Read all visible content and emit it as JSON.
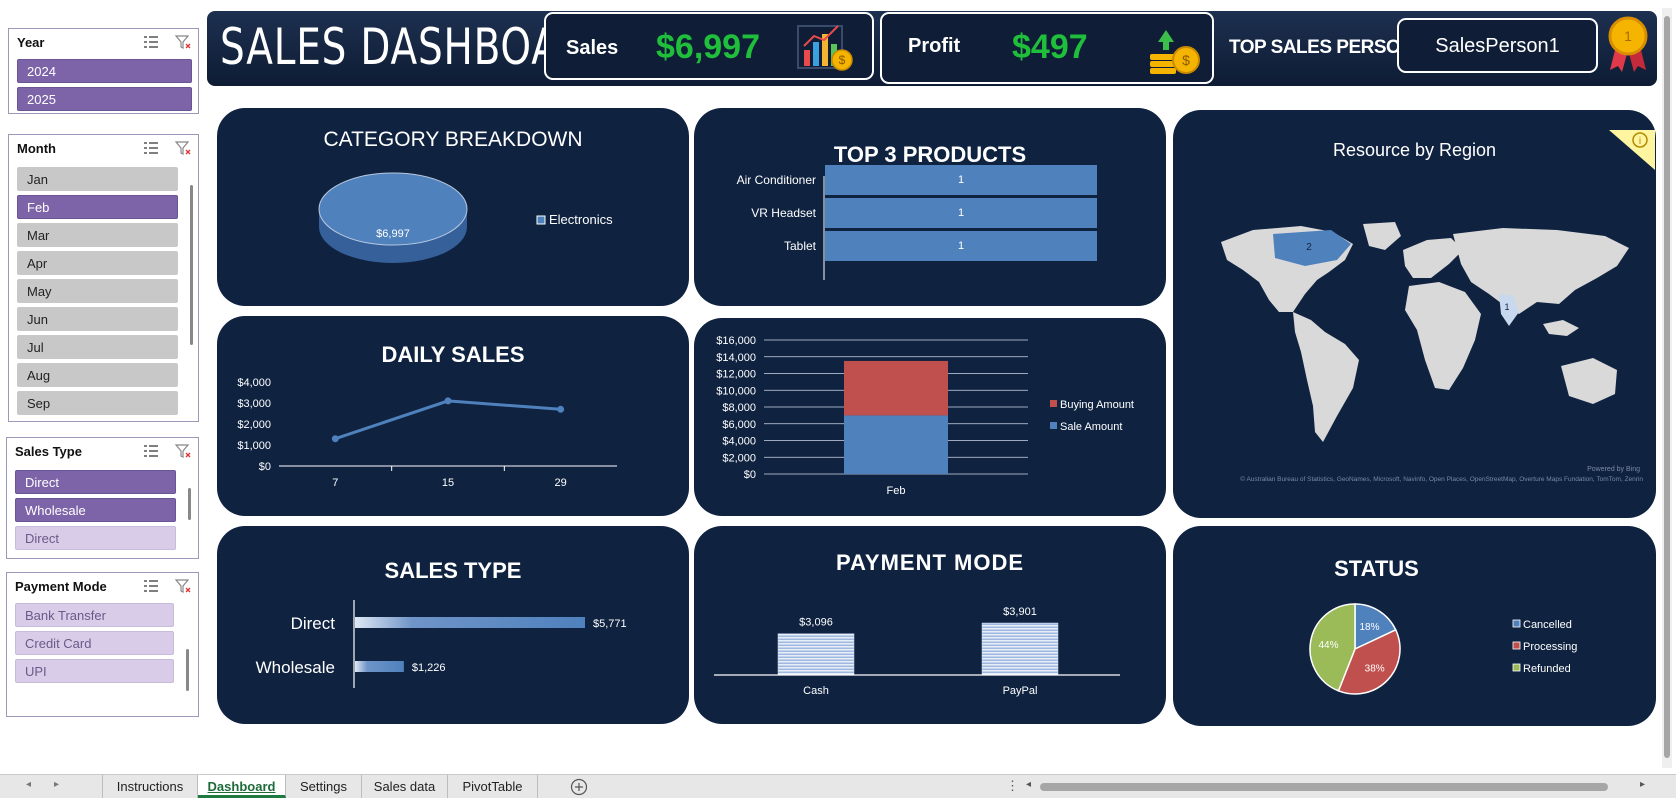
{
  "slicers": {
    "year": {
      "title": "Year",
      "items": [
        "2024",
        "2025"
      ]
    },
    "month": {
      "title": "Month",
      "items": [
        "Jan",
        "Feb",
        "Mar",
        "Apr",
        "May",
        "Jun",
        "Jul",
        "Aug",
        "Sep"
      ]
    },
    "sales_type": {
      "title": "Sales Type",
      "items": [
        "Direct",
        "Wholesale",
        "Direct"
      ]
    },
    "payment_mode": {
      "title": "Payment Mode",
      "items": [
        "Bank Transfer",
        "Credit Card",
        "UPI"
      ]
    }
  },
  "header": {
    "title": "SALES DASHBOARD",
    "sales_label": "Sales",
    "sales_value": "$6,997",
    "profit_label": "Profit",
    "profit_value": "$497",
    "top_label": "TOP SALES PERSON",
    "top_value": "SalesPerson1",
    "medal_number": "1"
  },
  "panels": {
    "category": {
      "title": "CATEGORY BREAKDOWN"
    },
    "top3": {
      "title": "TOP 3 PRODUCTS"
    },
    "region": {
      "title": "Resource by Region",
      "attribution": "© Australian Bureau of Statistics, GeoNames, Microsoft, Navinfo, Open Places, OpenStreetMap, Overture Maps Fundation, TomTom, Zenrin",
      "powered": "Powered by Bing"
    },
    "daily": {
      "title": "DAILY SALES"
    },
    "salestype": {
      "title": "SALES TYPE"
    },
    "payment": {
      "title": "PAYMENT MODE"
    },
    "status": {
      "title": "STATUS"
    }
  },
  "chart_data": [
    {
      "type": "pie",
      "name": "category",
      "categories": [
        "Electronics"
      ],
      "values": [
        6997
      ],
      "data_labels": [
        "$6,997"
      ],
      "legend": "right",
      "colors": [
        "#4f81bd"
      ]
    },
    {
      "type": "bar",
      "orientation": "horizontal",
      "name": "top3",
      "categories": [
        "Air Conditioner",
        "VR Headset",
        "Tablet"
      ],
      "values": [
        1,
        1,
        1
      ],
      "data_labels": [
        "1",
        "1",
        "1"
      ],
      "colors": [
        "#4f81bd"
      ]
    },
    {
      "type": "map",
      "name": "region",
      "labels": [
        {
          "text": "2",
          "region": "North America"
        },
        {
          "text": "1",
          "region": "India"
        }
      ]
    },
    {
      "type": "line",
      "name": "daily",
      "x": [
        7,
        15,
        29
      ],
      "x_tick_labels": [
        "7",
        "15",
        "29"
      ],
      "y": [
        1300,
        3100,
        2700
      ],
      "ylim": [
        0,
        4000
      ],
      "y_tick_labels": [
        "$0",
        "$1,000",
        "$2,000",
        "$3,000",
        "$4,000"
      ],
      "colors": [
        "#4f81bd"
      ]
    },
    {
      "type": "bar",
      "stacked": true,
      "name": "buy_sale",
      "categories": [
        "Feb"
      ],
      "series": [
        {
          "name": "Sale Amount",
          "values": [
            6997
          ],
          "color": "#4f81bd"
        },
        {
          "name": "Buying Amount",
          "values": [
            6500
          ],
          "color": "#c0504d"
        }
      ],
      "ylim": [
        0,
        16000
      ],
      "y_tick_labels": [
        "$0",
        "$2,000",
        "$4,000",
        "$6,000",
        "$8,000",
        "$10,000",
        "$12,000",
        "$14,000",
        "$16,000"
      ],
      "legend": [
        "Buying Amount",
        "Sale Amount"
      ],
      "legend_placement": "right"
    },
    {
      "type": "bar",
      "orientation": "horizontal",
      "name": "salestype",
      "categories": [
        "Direct",
        "Wholesale"
      ],
      "values": [
        5771,
        1226
      ],
      "data_labels": [
        "$5,771",
        "$1,226"
      ],
      "colors": [
        "#4f81bd"
      ]
    },
    {
      "type": "bar",
      "name": "payment",
      "categories": [
        "Cash",
        "PayPal"
      ],
      "values": [
        3096,
        3901
      ],
      "data_labels": [
        "$3,096",
        "$3,901"
      ],
      "colors": [
        "#c8d8f0"
      ]
    },
    {
      "type": "pie",
      "name": "status",
      "categories": [
        "Cancelled",
        "Processing",
        "Refunded"
      ],
      "values": [
        18,
        38,
        44
      ],
      "data_labels": [
        "18%",
        "38%",
        "44%"
      ],
      "colors": [
        "#4f81bd",
        "#c0504d",
        "#9bbb59"
      ],
      "legend": "right"
    }
  ],
  "tabs": [
    "Instructions",
    "Dashboard",
    "Settings",
    "Sales data",
    "PivotTable"
  ],
  "active_tab": "Dashboard"
}
